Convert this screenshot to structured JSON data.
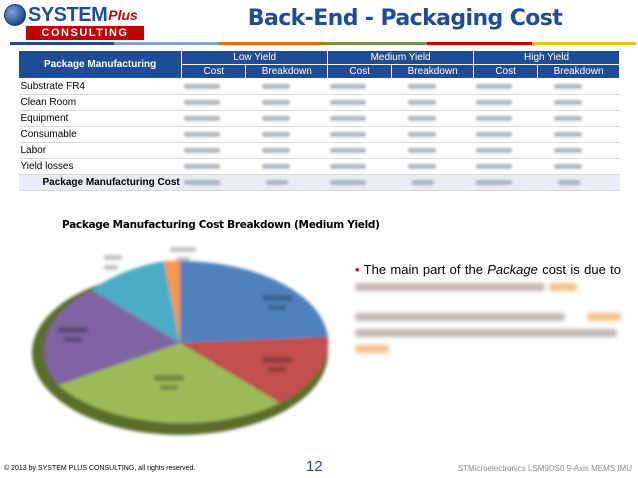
{
  "logo": {
    "top": "SYSTEM",
    "plus": "Plus",
    "bottom": "CONSULTING"
  },
  "title": "Back-End - Packaging Cost",
  "accent_colors": [
    "#1f4c96",
    "#7fa3d6",
    "#e46c0a",
    "#77933c",
    "#c00000",
    "#f2c314"
  ],
  "table": {
    "header": "Package Manufacturing",
    "groups": [
      "Low Yield",
      "Medium Yield",
      "High Yield"
    ],
    "subheaders": [
      "Cost",
      "Breakdown",
      "Cost",
      "Breakdown",
      "Cost",
      "Breakdown"
    ],
    "rows": [
      "Substrate FR4",
      "Clean Room",
      "Equipment",
      "Consumable",
      "Labor",
      "Yield losses"
    ],
    "total_label": "Package Manufacturing Cost"
  },
  "chart_data": {
    "type": "pie",
    "title": "Package Manufacturing Cost Breakdown (Medium Yield)",
    "slice_colors": [
      "#4f81bd",
      "#c0504d",
      "#9bbb59",
      "#8064a2",
      "#4bacc6",
      "#f79646"
    ]
  },
  "bullets": {
    "b1_prefix": "The main part of the ",
    "b1_italic": "Package",
    "b1_suffix": " cost is due to"
  },
  "footer": {
    "copyright": "© 2013 by SYSTEM PLUS CONSULTING, all rights reserved.",
    "page": "12",
    "doc": "STMicroelectronics LSM9DS0 9-Axis MEMS IMU"
  }
}
